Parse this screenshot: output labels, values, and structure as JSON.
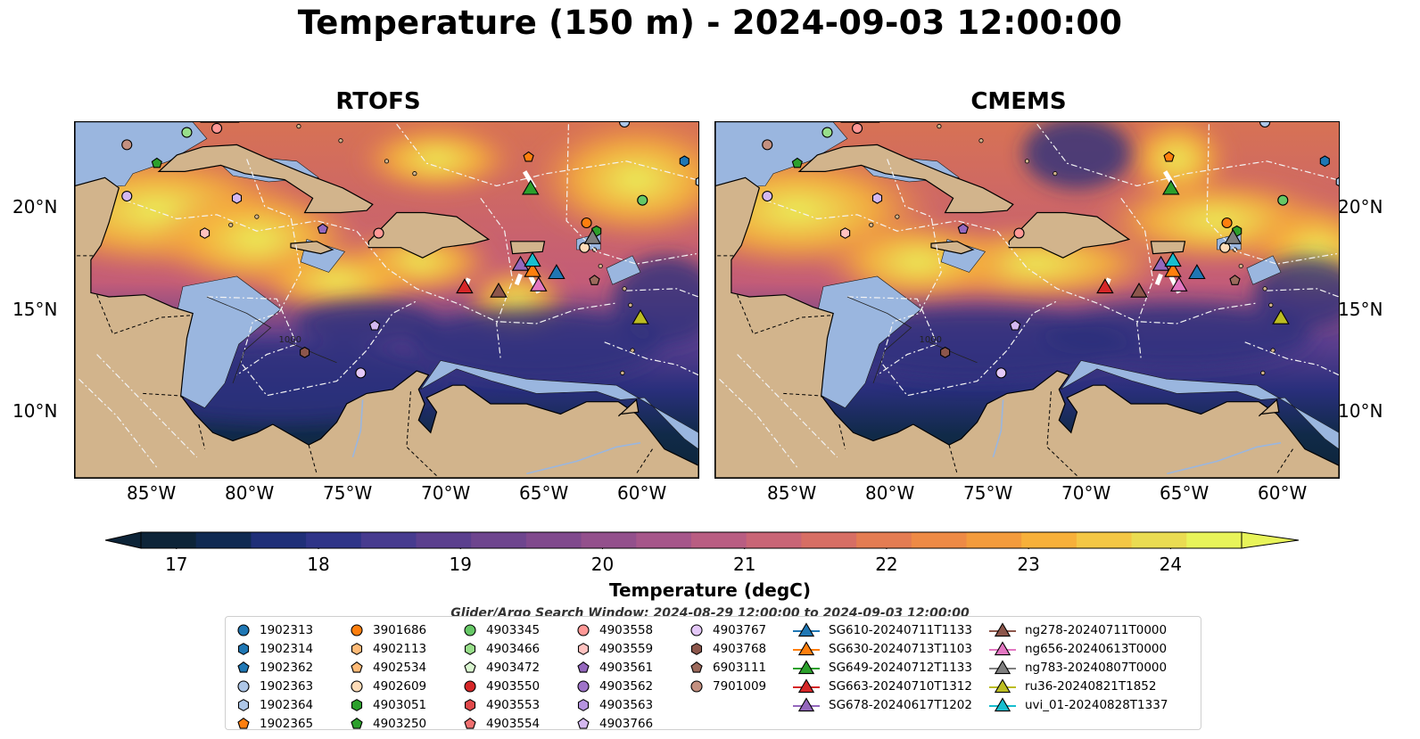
{
  "title": "Temperature (150 m) - 2024-09-03 12:00:00",
  "panels": [
    {
      "title": "RTOFS"
    },
    {
      "title": "CMEMS"
    }
  ],
  "lon_labels": [
    "85°W",
    "80°W",
    "75°W",
    "70°W",
    "65°W",
    "60°W"
  ],
  "lat_labels": [
    "20°N",
    "15°N",
    "10°N"
  ],
  "contour_label": "1000",
  "colorbar": {
    "label": "Temperature (degC)",
    "ticks": [
      "17",
      "18",
      "19",
      "20",
      "21",
      "22",
      "23",
      "24"
    ],
    "colors": [
      "#0d2438",
      "#102a52",
      "#1f2f78",
      "#2f3488",
      "#473b8f",
      "#5b3f8e",
      "#6e458e",
      "#80498d",
      "#93508c",
      "#a6568a",
      "#b95d82",
      "#c96576",
      "#d76e64",
      "#e47c52",
      "#ee8a45",
      "#f39b3c",
      "#f7b03a",
      "#f4c745",
      "#eadc52",
      "#e8f45a"
    ]
  },
  "search_window": "Glider/Argo Search Window: 2024-08-29 12:00:00 to 2024-09-03 12:00:00",
  "legend": {
    "argo": [
      {
        "label": "1902313",
        "marker": "circle",
        "color": "#1f77b4"
      },
      {
        "label": "1902314",
        "marker": "hexagon",
        "color": "#1f77b4"
      },
      {
        "label": "1902362",
        "marker": "pentagon",
        "color": "#1f77b4"
      },
      {
        "label": "1902363",
        "marker": "circle",
        "color": "#aec7e8"
      },
      {
        "label": "1902364",
        "marker": "hexagon",
        "color": "#aec7e8"
      },
      {
        "label": "1902365",
        "marker": "pentagon",
        "color": "#ff7f0e"
      },
      {
        "label": "3901686",
        "marker": "circle",
        "color": "#ff7f0e"
      },
      {
        "label": "4902113",
        "marker": "hexagon",
        "color": "#ffbb78"
      },
      {
        "label": "4902534",
        "marker": "pentagon",
        "color": "#ffbb78"
      },
      {
        "label": "4902609",
        "marker": "circle",
        "color": "#ffdcb8"
      },
      {
        "label": "4903051",
        "marker": "hexagon",
        "color": "#2ca02c"
      },
      {
        "label": "4903250",
        "marker": "pentagon",
        "color": "#2ca02c"
      },
      {
        "label": "4903345",
        "marker": "circle",
        "color": "#66c866"
      },
      {
        "label": "4903466",
        "marker": "hexagon",
        "color": "#98df8a"
      },
      {
        "label": "4903472",
        "marker": "pentagon",
        "color": "#d9f5cf"
      },
      {
        "label": "4903550",
        "marker": "circle",
        "color": "#d62728"
      },
      {
        "label": "4903553",
        "marker": "hexagon",
        "color": "#e0484a"
      },
      {
        "label": "4903554",
        "marker": "pentagon",
        "color": "#f07070"
      },
      {
        "label": "4903558",
        "marker": "circle",
        "color": "#ff9896"
      },
      {
        "label": "4903559",
        "marker": "hexagon",
        "color": "#ffc2c0"
      },
      {
        "label": "4903561",
        "marker": "pentagon",
        "color": "#9467bd"
      },
      {
        "label": "4903562",
        "marker": "circle",
        "color": "#9f74c9"
      },
      {
        "label": "4903563",
        "marker": "hexagon",
        "color": "#b694e0"
      },
      {
        "label": "4903766",
        "marker": "pentagon",
        "color": "#d4b8f0"
      },
      {
        "label": "4903767",
        "marker": "circle",
        "color": "#e4c8f8"
      },
      {
        "label": "4903768",
        "marker": "hexagon",
        "color": "#8c564b"
      },
      {
        "label": "6903111",
        "marker": "pentagon",
        "color": "#9c6a5c"
      },
      {
        "label": "7901009",
        "marker": "circle",
        "color": "#c49080"
      }
    ],
    "gliders": [
      {
        "label": "SG610-20240711T1133",
        "color": "#1f77b4"
      },
      {
        "label": "SG630-20240713T1103",
        "color": "#ff7f0e"
      },
      {
        "label": "SG649-20240712T1133",
        "color": "#2ca02c"
      },
      {
        "label": "SG663-20240710T1312",
        "color": "#d62728"
      },
      {
        "label": "SG678-20240617T1202",
        "color": "#9467bd"
      },
      {
        "label": "ng278-20240711T0000",
        "color": "#8c564b"
      },
      {
        "label": "ng656-20240613T0000",
        "color": "#e377c2"
      },
      {
        "label": "ng783-20240807T0000",
        "color": "#7f7f7f"
      },
      {
        "label": "ru36-20240821T1852",
        "color": "#bcbd22"
      },
      {
        "label": "uvi_01-20240828T1337",
        "color": "#17becf"
      }
    ]
  },
  "map_markers": [
    {
      "lon": -86.5,
      "lat": 23.2,
      "marker": "circle",
      "color": "#c49080"
    },
    {
      "lon": -85.0,
      "lat": 22.3,
      "marker": "pentagon",
      "color": "#2ca02c"
    },
    {
      "lon": -83.5,
      "lat": 23.8,
      "marker": "circle",
      "color": "#98df8a"
    },
    {
      "lon": -82.0,
      "lat": 24.0,
      "marker": "circle",
      "color": "#ff9896"
    },
    {
      "lon": -86.5,
      "lat": 20.7,
      "marker": "circle",
      "color": "#d4b8f0"
    },
    {
      "lon": -81.0,
      "lat": 20.6,
      "marker": "hexagon",
      "color": "#d4b8f0"
    },
    {
      "lon": -82.6,
      "lat": 18.9,
      "marker": "hexagon",
      "color": "#ffc2c0"
    },
    {
      "lon": -76.7,
      "lat": 19.1,
      "marker": "pentagon",
      "color": "#9467bd"
    },
    {
      "lon": -73.9,
      "lat": 18.9,
      "marker": "circle",
      "color": "#ff9896"
    },
    {
      "lon": -77.6,
      "lat": 13.1,
      "marker": "hexagon",
      "color": "#8c564b"
    },
    {
      "lon": -74.1,
      "lat": 14.4,
      "marker": "pentagon",
      "color": "#d4b8f0"
    },
    {
      "lon": -74.8,
      "lat": 12.1,
      "marker": "circle",
      "color": "#e4c8f8"
    },
    {
      "lon": -66.4,
      "lat": 22.6,
      "marker": "pentagon",
      "color": "#ff7f0e"
    },
    {
      "lon": -61.6,
      "lat": 24.3,
      "marker": "circle",
      "color": "#aec7e8"
    },
    {
      "lon": -58.6,
      "lat": 22.4,
      "marker": "hexagon",
      "color": "#1f77b4"
    },
    {
      "lon": -57.8,
      "lat": 21.4,
      "marker": "hexagon",
      "color": "#aec7e8"
    },
    {
      "lon": -60.7,
      "lat": 20.5,
      "marker": "circle",
      "color": "#66c866"
    },
    {
      "lon": -63.5,
      "lat": 19.4,
      "marker": "circle",
      "color": "#ff7f0e"
    },
    {
      "lon": -63.0,
      "lat": 19.0,
      "marker": "hexagon",
      "color": "#2ca02c"
    },
    {
      "lon": -63.6,
      "lat": 18.2,
      "marker": "circle",
      "color": "#ffdcb8"
    },
    {
      "lon": -63.1,
      "lat": 16.6,
      "marker": "pentagon",
      "color": "#9c6a5c"
    },
    {
      "lon": -69.6,
      "lat": 16.3,
      "marker": "triangle",
      "color": "#d62728"
    },
    {
      "lon": -67.9,
      "lat": 16.1,
      "marker": "triangle",
      "color": "#8c564b"
    },
    {
      "lon": -66.3,
      "lat": 21.1,
      "marker": "triangle",
      "color": "#2ca02c"
    },
    {
      "lon": -66.8,
      "lat": 17.4,
      "marker": "triangle",
      "color": "#9467bd"
    },
    {
      "lon": -66.2,
      "lat": 17.1,
      "marker": "triangle",
      "color": "#ff7f0e"
    },
    {
      "lon": -66.2,
      "lat": 17.6,
      "marker": "triangle",
      "color": "#17becf"
    },
    {
      "lon": -65.9,
      "lat": 16.4,
      "marker": "triangle",
      "color": "#e377c2"
    },
    {
      "lon": -65.0,
      "lat": 17.0,
      "marker": "triangle",
      "color": "#1f77b4"
    },
    {
      "lon": -63.2,
      "lat": 18.7,
      "marker": "triangle",
      "color": "#7f7f7f"
    },
    {
      "lon": -60.8,
      "lat": 14.8,
      "marker": "triangle",
      "color": "#bcbd22"
    }
  ]
}
